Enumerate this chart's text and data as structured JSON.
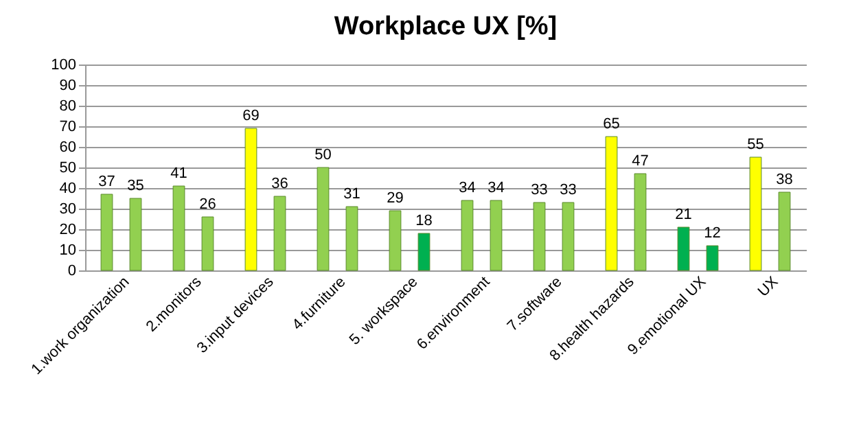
{
  "chart_data": {
    "type": "bar",
    "title": "Workplace UX [%]",
    "categories": [
      "1.work organization",
      "2.monitors",
      "3.input devices",
      "4.furniture",
      "5. workspace",
      "6.environment",
      "7.software",
      "8.health hazards",
      "9.emotional UX",
      "UX"
    ],
    "series": [
      {
        "values": [
          37,
          41,
          69,
          50,
          29,
          34,
          33,
          65,
          21,
          55
        ],
        "colors": [
          "#92d050",
          "#92d050",
          "#ffff00",
          "#92d050",
          "#92d050",
          "#92d050",
          "#92d050",
          "#ffff00",
          "#00b050",
          "#ffff00"
        ]
      },
      {
        "values": [
          35,
          26,
          36,
          31,
          18,
          34,
          33,
          47,
          12,
          38
        ],
        "colors": [
          "#92d050",
          "#92d050",
          "#92d050",
          "#92d050",
          "#00b050",
          "#92d050",
          "#92d050",
          "#92d050",
          "#00b050",
          "#92d050"
        ]
      }
    ],
    "ylim": [
      0,
      100
    ],
    "yticks": [
      0,
      10,
      20,
      30,
      40,
      50,
      60,
      70,
      80,
      90,
      100
    ],
    "grid": "y",
    "data_labels": true
  }
}
